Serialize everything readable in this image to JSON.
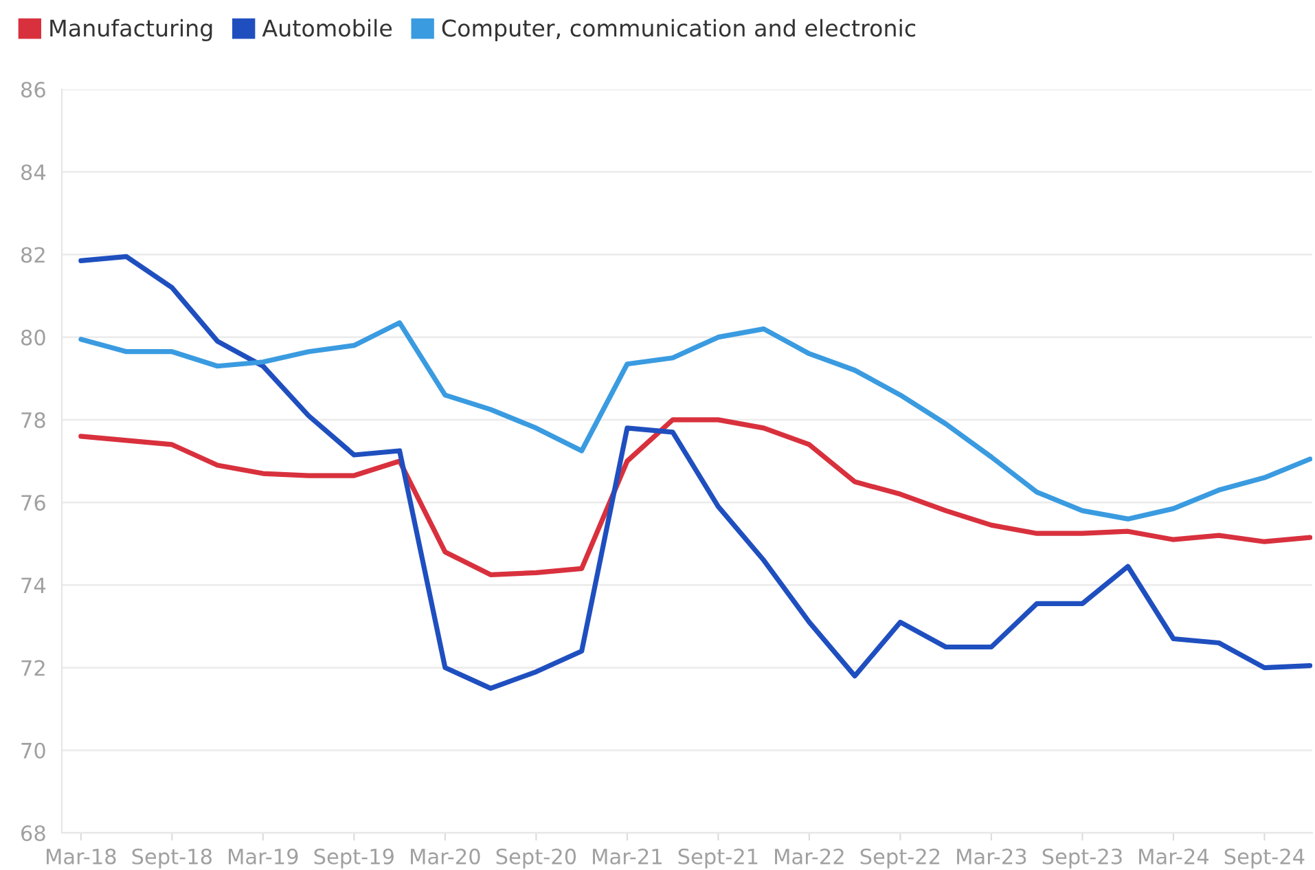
{
  "chart_data": {
    "type": "line",
    "categories": [
      "Mar-18",
      null,
      "Sept-18",
      null,
      "Mar-19",
      null,
      "Sept-19",
      null,
      "Mar-20",
      null,
      "Sept-20",
      null,
      "Mar-21",
      null,
      "Sept-21",
      null,
      "Mar-22",
      null,
      "Sept-22",
      null,
      "Mar-23",
      null,
      "Sept-23",
      null,
      "Mar-24",
      null,
      "Sept-24",
      null
    ],
    "series": [
      {
        "name": "Manufacturing",
        "color": "#d8313d",
        "values": [
          77.6,
          77.5,
          77.4,
          76.9,
          76.7,
          76.65,
          76.65,
          77.0,
          74.8,
          74.25,
          74.3,
          74.4,
          77.0,
          78.0,
          78.0,
          77.8,
          77.4,
          76.5,
          76.2,
          75.8,
          75.45,
          75.25,
          75.25,
          75.3,
          75.1,
          75.2,
          75.05,
          75.15
        ]
      },
      {
        "name": "Automobile",
        "color": "#1f4fbf",
        "values": [
          81.85,
          81.95,
          81.2,
          79.9,
          79.3,
          78.1,
          77.15,
          77.25,
          72.0,
          71.5,
          71.9,
          72.4,
          77.8,
          77.7,
          75.9,
          74.6,
          73.1,
          71.8,
          73.1,
          72.5,
          72.5,
          73.55,
          73.55,
          74.45,
          72.7,
          72.6,
          72.0,
          72.05
        ]
      },
      {
        "name": "Computer, communication and electronic",
        "color": "#3a9be0",
        "values": [
          79.95,
          79.65,
          79.65,
          79.3,
          79.4,
          79.65,
          79.8,
          80.35,
          78.6,
          78.25,
          77.8,
          77.25,
          79.35,
          79.5,
          80.0,
          80.2,
          79.6,
          79.2,
          78.6,
          77.9,
          77.1,
          76.25,
          75.8,
          75.6,
          75.85,
          76.3,
          76.6,
          77.05
        ]
      }
    ],
    "ylim": [
      68,
      86
    ],
    "yticks": [
      68,
      70,
      72,
      74,
      76,
      78,
      80,
      82,
      84,
      86
    ],
    "grid": "y",
    "legend": "top left",
    "marker": "none",
    "line_style": "solid"
  }
}
